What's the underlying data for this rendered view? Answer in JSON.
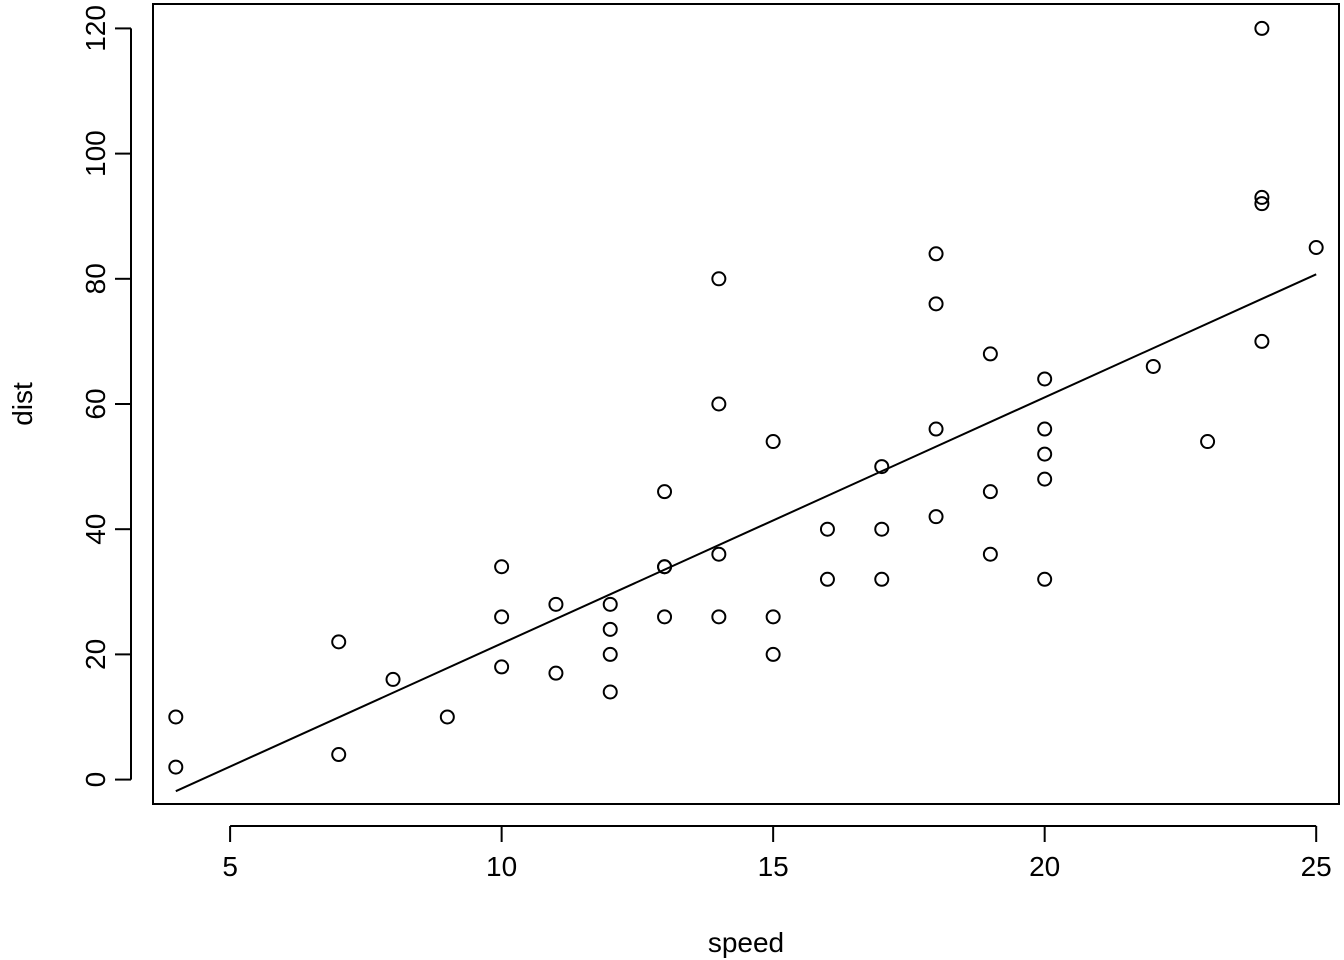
{
  "chart_data": {
    "type": "scatter",
    "title": "",
    "xlabel": "speed",
    "ylabel": "dist",
    "xlim": [
      3.58,
      25.42
    ],
    "ylim": [
      -3.9,
      123.9
    ],
    "x_ticks": [
      5,
      10,
      15,
      20,
      25
    ],
    "y_ticks": [
      0,
      20,
      40,
      60,
      80,
      100,
      120
    ],
    "grid": false,
    "legend": "none",
    "point_style": "open-circle",
    "point_color": "#000000",
    "line_color": "#000000",
    "series": [
      {
        "points": [
          [
            4,
            2
          ],
          [
            4,
            10
          ],
          [
            7,
            4
          ],
          [
            7,
            22
          ],
          [
            8,
            16
          ],
          [
            9,
            10
          ],
          [
            10,
            18
          ],
          [
            10,
            26
          ],
          [
            10,
            34
          ],
          [
            11,
            17
          ],
          [
            11,
            28
          ],
          [
            12,
            14
          ],
          [
            12,
            20
          ],
          [
            12,
            24
          ],
          [
            12,
            28
          ],
          [
            13,
            26
          ],
          [
            13,
            34
          ],
          [
            13,
            34
          ],
          [
            13,
            46
          ],
          [
            14,
            26
          ],
          [
            14,
            36
          ],
          [
            14,
            60
          ],
          [
            14,
            80
          ],
          [
            15,
            20
          ],
          [
            15,
            26
          ],
          [
            15,
            54
          ],
          [
            16,
            32
          ],
          [
            16,
            40
          ],
          [
            17,
            32
          ],
          [
            17,
            40
          ],
          [
            17,
            50
          ],
          [
            18,
            42
          ],
          [
            18,
            56
          ],
          [
            18,
            76
          ],
          [
            18,
            84
          ],
          [
            19,
            36
          ],
          [
            19,
            46
          ],
          [
            19,
            68
          ],
          [
            20,
            32
          ],
          [
            20,
            48
          ],
          [
            20,
            52
          ],
          [
            20,
            56
          ],
          [
            20,
            64
          ],
          [
            22,
            66
          ],
          [
            23,
            54
          ],
          [
            24,
            70
          ],
          [
            24,
            92
          ],
          [
            24,
            93
          ],
          [
            24,
            120
          ],
          [
            25,
            85
          ]
        ]
      }
    ],
    "fit_line": {
      "intercept": -17.579,
      "slope": 3.932,
      "x_range": [
        4,
        25
      ]
    }
  }
}
